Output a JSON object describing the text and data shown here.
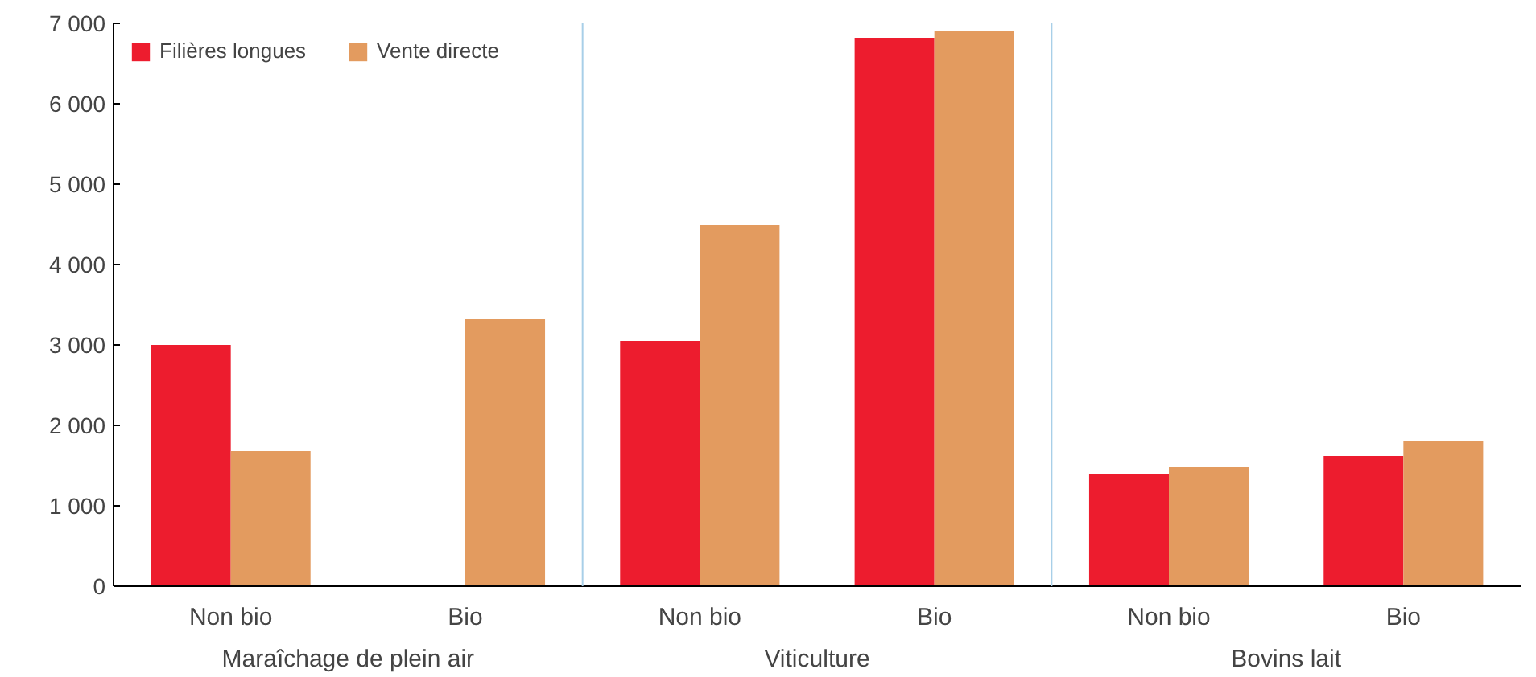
{
  "chart_data": {
    "type": "bar",
    "categories": [
      "Non bio",
      "Bio",
      "Non bio",
      "Bio",
      "Non bio",
      "Bio"
    ],
    "annotations": [
      "Maraîchage de plein air",
      "Viticulture",
      "Bovins lait"
    ],
    "series": [
      {
        "name": "Filières longues",
        "color": "#ed1c2e",
        "values": [
          3000,
          null,
          3050,
          6820,
          1400,
          1620
        ]
      },
      {
        "name": "Vente directe",
        "color": "#e39b5f",
        "values": [
          1680,
          3320,
          4490,
          6900,
          1480,
          1800
        ]
      }
    ],
    "ylim": [
      0,
      7000
    ],
    "yticks": [
      0,
      {
        "value": 1000,
        "label": "1 000"
      },
      {
        "value": 2000,
        "label": "2 000"
      },
      {
        "value": 3000,
        "label": "3 000"
      },
      {
        "value": 4000,
        "label": "4 000"
      },
      {
        "value": 5000,
        "label": "5 000"
      },
      {
        "value": 6000,
        "label": "6 000"
      },
      {
        "value": 7000,
        "label": "7 000"
      }
    ],
    "grid": false,
    "legend": "top left"
  }
}
